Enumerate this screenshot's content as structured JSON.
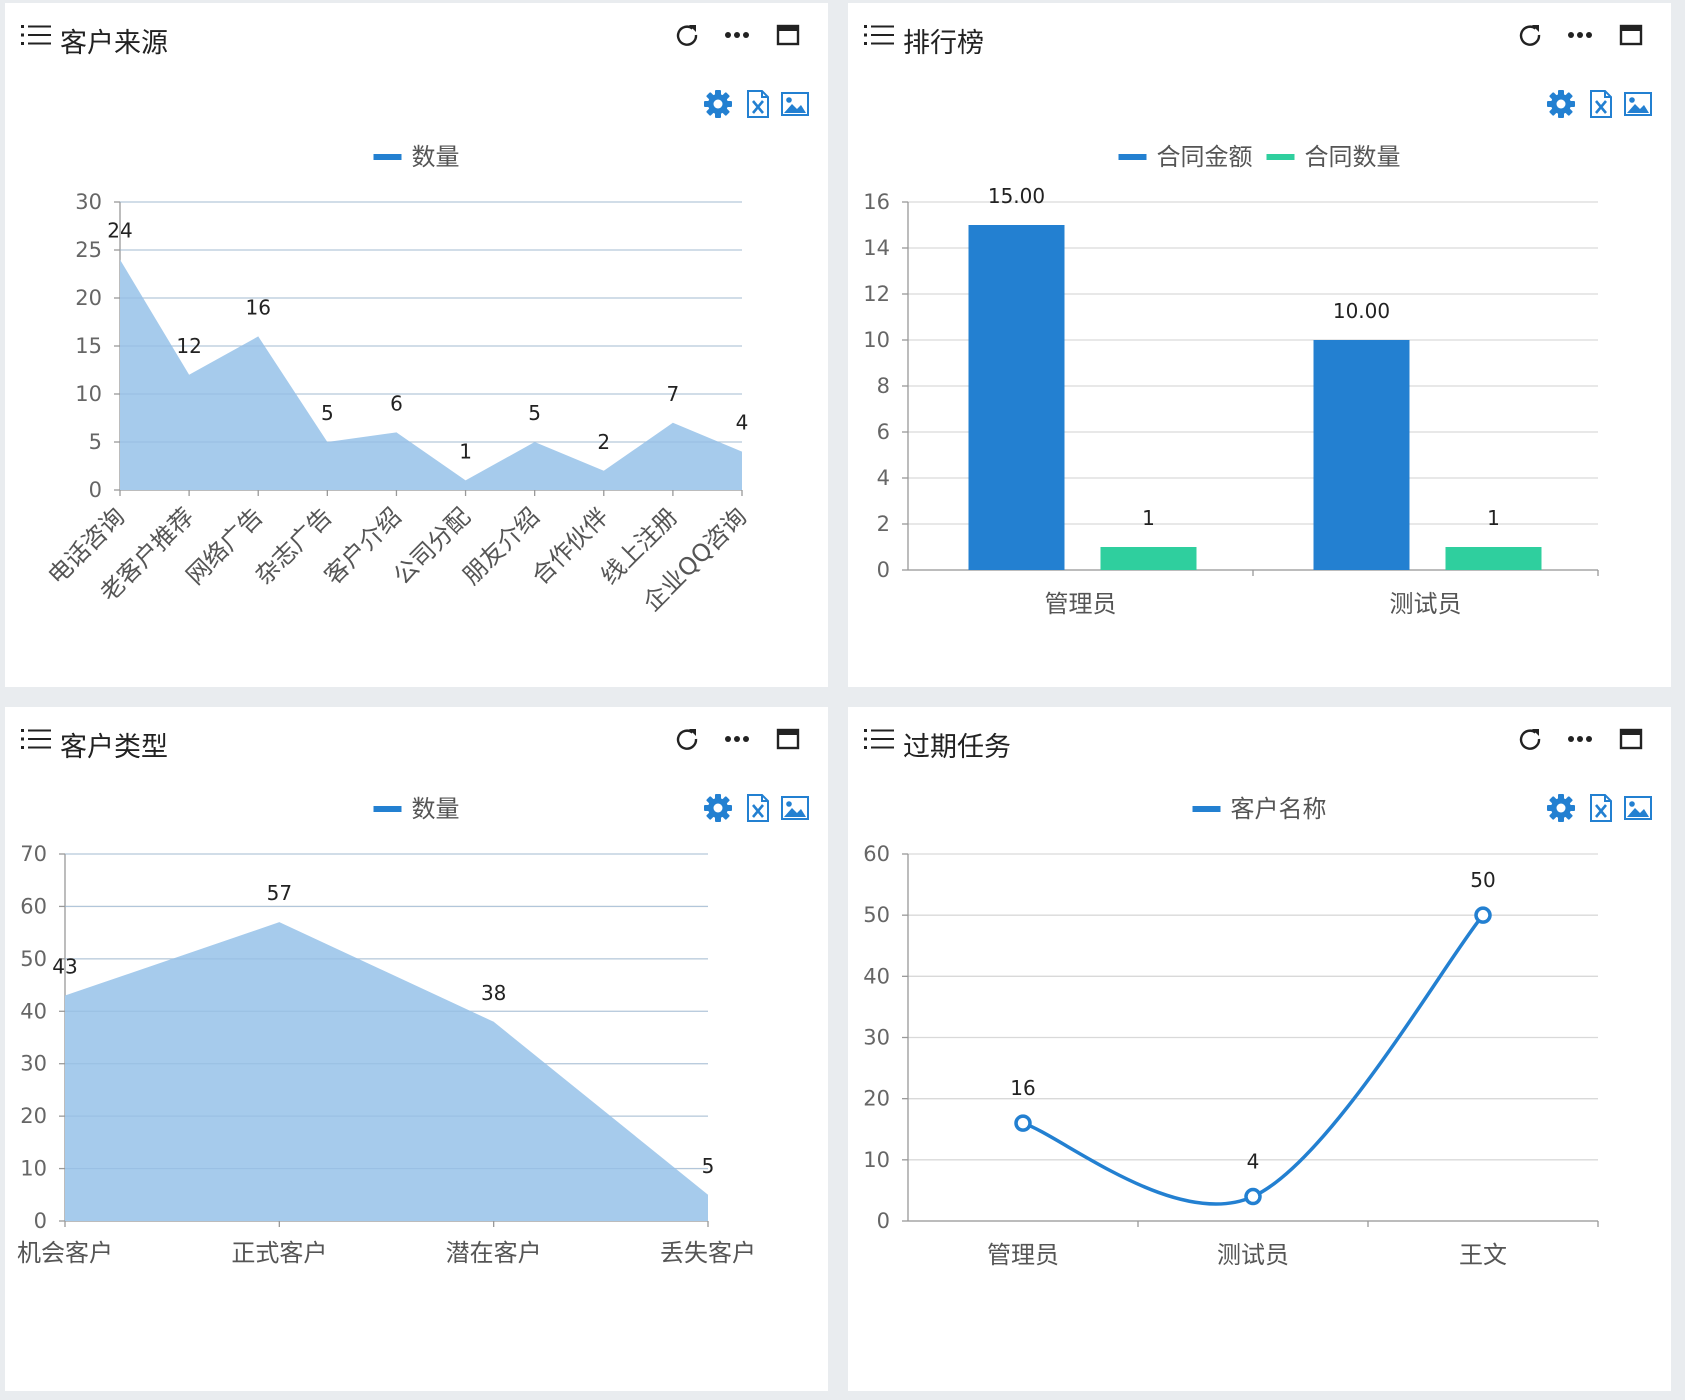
{
  "colors": {
    "blue": "#2380d1",
    "area": "#a6cbec",
    "green": "#2fcf9e",
    "grid": "#d9d9d9",
    "axis": "#999999"
  },
  "icons": {
    "header": [
      "menu-icon",
      "refresh-icon",
      "more-icon",
      "maximize-icon"
    ],
    "toolbar": [
      "gear-icon",
      "excel-icon",
      "image-icon"
    ]
  },
  "panels": [
    {
      "title": "客户来源"
    },
    {
      "title": "排行榜"
    },
    {
      "title": "客户类型"
    },
    {
      "title": "过期任务"
    }
  ],
  "chart_data": [
    {
      "type": "area",
      "legend": [
        "数量"
      ],
      "categories": [
        "电话咨询",
        "老客户推荐",
        "网络广告",
        "杂志广告",
        "客户介绍",
        "公司分配",
        "朋友介绍",
        "合作伙伴",
        "线上注册",
        "企业QQ咨询"
      ],
      "series": [
        {
          "name": "数量",
          "values": [
            24,
            12,
            16,
            5,
            6,
            1,
            5,
            2,
            7,
            4
          ]
        }
      ],
      "ylim": [
        0,
        30
      ],
      "yticks": [
        "0",
        "5",
        "10",
        "15",
        "20",
        "25",
        "30"
      ],
      "grid": true,
      "legend_position": "top-center"
    },
    {
      "type": "bar",
      "legend": [
        "合同金额",
        "合同数量"
      ],
      "categories": [
        "管理员",
        "测试员"
      ],
      "series": [
        {
          "name": "合同金额",
          "values": [
            15,
            10
          ],
          "labels": [
            "15.00",
            "10.00"
          ]
        },
        {
          "name": "合同数量",
          "values": [
            1,
            1
          ],
          "labels": [
            "1",
            "1"
          ]
        }
      ],
      "ylim": [
        0,
        16
      ],
      "yticks": [
        "0",
        "2",
        "4",
        "6",
        "8",
        "10",
        "12",
        "14",
        "16"
      ],
      "grid": true,
      "legend_position": "top-center"
    },
    {
      "type": "area",
      "legend": [
        "数量"
      ],
      "categories": [
        "机会客户",
        "正式客户",
        "潜在客户",
        "丢失客户"
      ],
      "series": [
        {
          "name": "数量",
          "values": [
            43,
            57,
            38,
            5
          ]
        }
      ],
      "ylim": [
        0,
        70
      ],
      "yticks": [
        "0",
        "10",
        "20",
        "30",
        "40",
        "50",
        "60",
        "70"
      ],
      "grid": true,
      "legend_position": "top-center"
    },
    {
      "type": "line",
      "legend": [
        "客户名称"
      ],
      "categories": [
        "管理员",
        "测试员",
        "王文"
      ],
      "series": [
        {
          "name": "客户名称",
          "values": [
            16,
            4,
            50
          ]
        }
      ],
      "ylim": [
        0,
        60
      ],
      "yticks": [
        "0",
        "10",
        "20",
        "30",
        "40",
        "50",
        "60"
      ],
      "grid": true,
      "smooth": true,
      "legend_position": "top-center"
    }
  ]
}
